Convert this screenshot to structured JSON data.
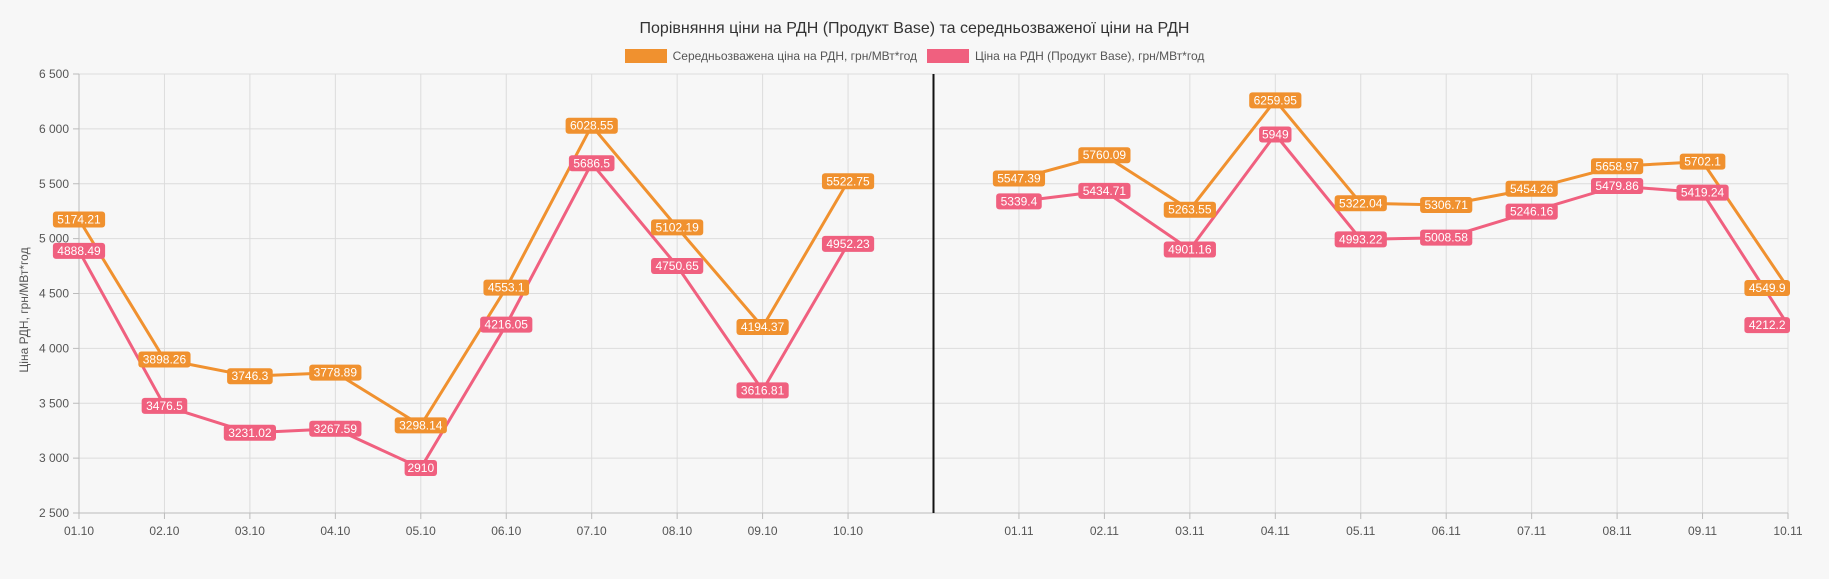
{
  "chart_data": {
    "type": "line",
    "title": "Порівняння ціни на РДН (Продукт Base) та середньозваженої ціни на РДН",
    "xlabel": "",
    "ylabel": "Ціна РДН, грн/МВт*год",
    "ylim": [
      2500,
      6500
    ],
    "yticks": [
      2500,
      3000,
      3500,
      4000,
      4500,
      5000,
      5500,
      6000,
      6500
    ],
    "ytick_labels": [
      "2 500",
      "3 000",
      "3 500",
      "4 000",
      "4 500",
      "5 000",
      "5 500",
      "6 000",
      "6 500"
    ],
    "categories": [
      "01.10",
      "02.10",
      "03.10",
      "04.10",
      "05.10",
      "06.10",
      "07.10",
      "08.10",
      "09.10",
      "10.10",
      "",
      "01.11",
      "02.11",
      "03.11",
      "04.11",
      "05.11",
      "06.11",
      "07.11",
      "08.11",
      "09.11",
      "10.11"
    ],
    "separator_after_category": "10.10",
    "grid": true,
    "legend_position": "top-center",
    "series": [
      {
        "name": "Середньозважена ціна на РДН, грн/МВт*год",
        "color": "#f0912f",
        "values": [
          5174.21,
          3898.26,
          3746.3,
          3778.89,
          3298.14,
          4553.1,
          6028.55,
          5102.19,
          4194.37,
          5522.75,
          null,
          5547.39,
          5760.09,
          5263.55,
          6259.95,
          5322.04,
          5306.71,
          5454.26,
          5658.97,
          5702.1,
          4549.9
        ],
        "labels": [
          "5174.21",
          "3898.26",
          "3746.3",
          "3778.89",
          "3298.14",
          "4553.1",
          "6028.55",
          "5102.19",
          "4194.37",
          "5522.75",
          "",
          "5547.39",
          "5760.09",
          "5263.55",
          "6259.95",
          "5322.04",
          "5306.71",
          "5454.26",
          "5658.97",
          "5702.1",
          "4549.9"
        ]
      },
      {
        "name": "Ціна на РДН (Продукт Base), грн/МВт*год",
        "color": "#f0607f",
        "values": [
          4888.49,
          3476.5,
          3231.02,
          3267.59,
          2910,
          4216.05,
          5686.5,
          4750.65,
          3616.81,
          4952.23,
          null,
          5339.4,
          5434.71,
          4901.16,
          5949,
          4993.22,
          5008.58,
          5246.16,
          5479.86,
          5419.24,
          4212.2
        ],
        "labels": [
          "4888.49",
          "3476.5",
          "3231.02",
          "3267.59",
          "2910",
          "4216.05",
          "5686.5",
          "4750.65",
          "3616.81",
          "4952.23",
          "",
          "5339.4",
          "5434.71",
          "4901.16",
          "5949",
          "4993.22",
          "5008.58",
          "5246.16",
          "5479.86",
          "5419.24",
          "4212.2"
        ]
      }
    ]
  }
}
